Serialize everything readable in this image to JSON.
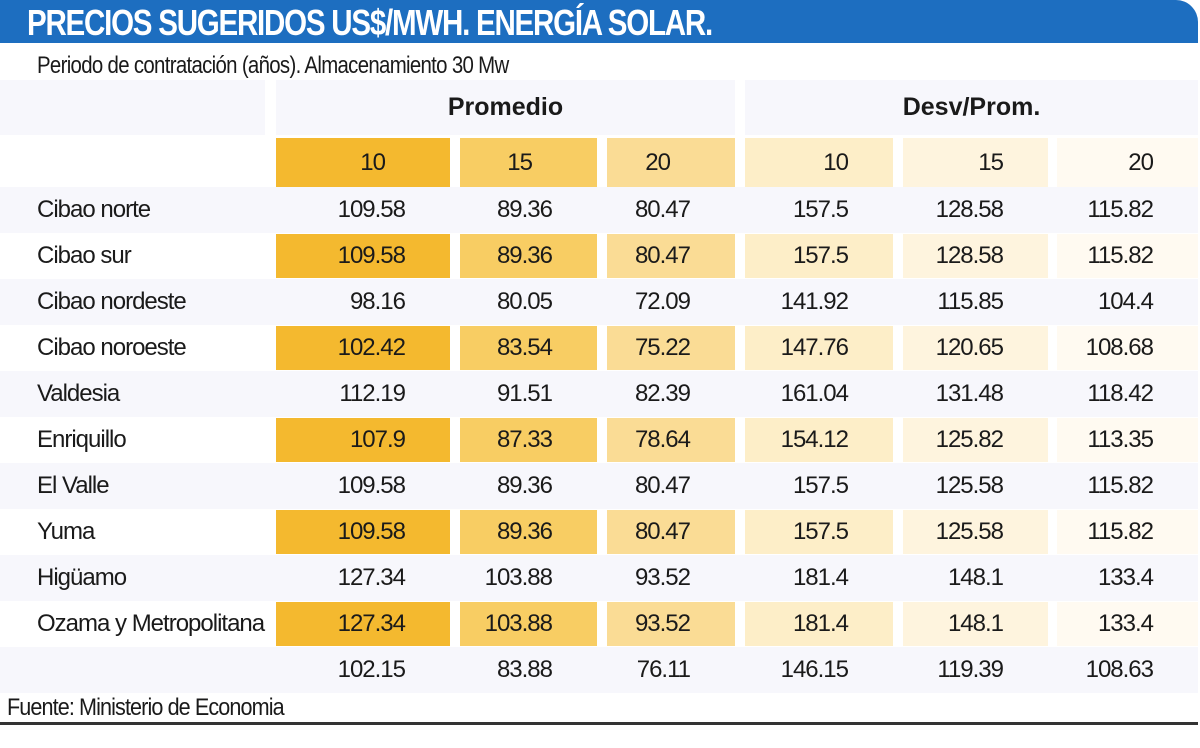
{
  "title": "PRECIOS SUGERIDOS US$/MWH. ENERGÍA SOLAR.",
  "subtitle": "Periodo de contratación (años). Almacenamiento 30 Mw",
  "source": "Fuente: Ministerio de Economia",
  "colors": {
    "header_bar": "#1d6ec0",
    "col_fills": [
      "#f4b92f",
      "#f8cd63",
      "#fadc95",
      "#fdeec8",
      "#fef4de",
      "#fffaf1"
    ],
    "stripe": "#f7f7fc"
  },
  "chart_data": {
    "type": "table",
    "groups": [
      "Promedio",
      "Desv/Prom."
    ],
    "columns": [
      "10",
      "15",
      "20",
      "10",
      "15",
      "20"
    ],
    "rows": [
      {
        "label": "Cibao norte",
        "values": [
          "109.58",
          "89.36",
          "80.47",
          "157.5",
          "128.58",
          "115.82"
        ]
      },
      {
        "label": "Cibao sur",
        "values": [
          "109.58",
          "89.36",
          "80.47",
          "157.5",
          "128.58",
          "115.82"
        ]
      },
      {
        "label": "Cibao nordeste",
        "values": [
          "98.16",
          "80.05",
          "72.09",
          "141.92",
          "115.85",
          "104.4"
        ]
      },
      {
        "label": "Cibao noroeste",
        "values": [
          "102.42",
          "83.54",
          "75.22",
          "147.76",
          "120.65",
          "108.68"
        ]
      },
      {
        "label": "Valdesia",
        "values": [
          "112.19",
          "91.51",
          "82.39",
          "161.04",
          "131.48",
          "118.42"
        ]
      },
      {
        "label": "Enriquillo",
        "values": [
          "107.9",
          "87.33",
          "78.64",
          "154.12",
          "125.82",
          "113.35"
        ]
      },
      {
        "label": "El Valle",
        "values": [
          "109.58",
          "89.36",
          "80.47",
          "157.5",
          "125.58",
          "115.82"
        ]
      },
      {
        "label": "Yuma",
        "values": [
          "109.58",
          "89.36",
          "80.47",
          "157.5",
          "125.58",
          "115.82"
        ]
      },
      {
        "label": "Higüamo",
        "values": [
          "127.34",
          "103.88",
          "93.52",
          "181.4",
          "148.1",
          "133.4"
        ]
      },
      {
        "label": "Ozama y Metropolitana",
        "values": [
          "127.34",
          "103.88",
          "93.52",
          "181.4",
          "148.1",
          "133.4"
        ]
      },
      {
        "label": "",
        "values": [
          "102.15",
          "83.88",
          "76.11",
          "146.15",
          "119.39",
          "108.63"
        ]
      }
    ]
  }
}
